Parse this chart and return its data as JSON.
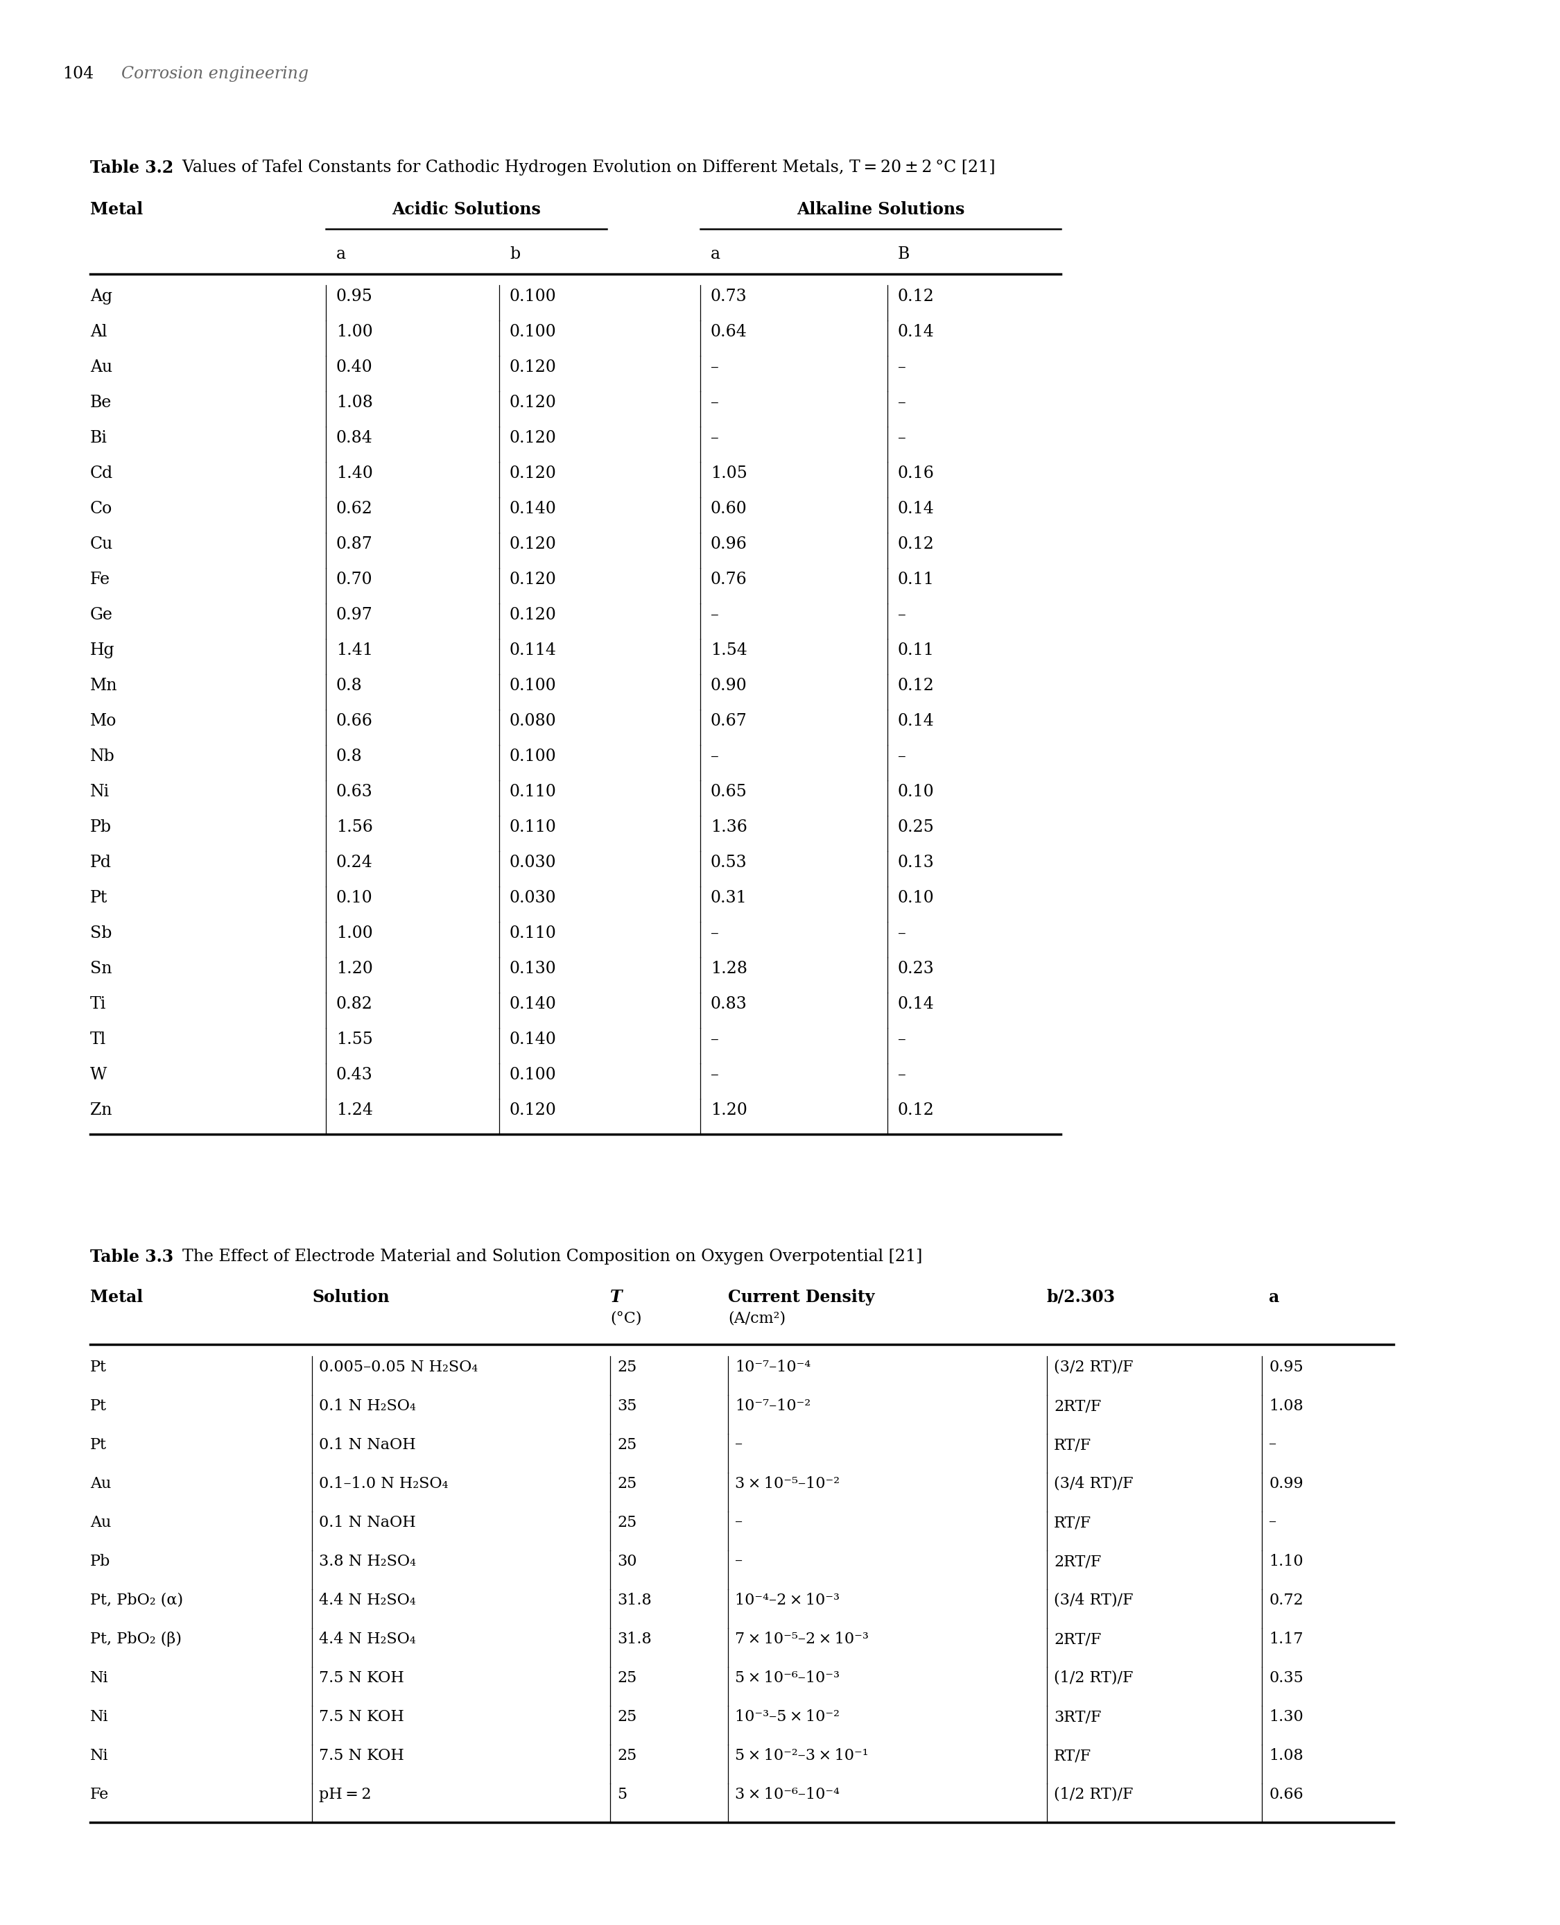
{
  "page_number": "104",
  "page_header": "Corrosion engineering",
  "table1": {
    "title_bold": "Table 3.2",
    "title_normal": "  Values of Tafel Constants for Cathodic Hydrogen Evolution on Different Metals, T = 20 ± 2 °C [21]",
    "rows": [
      [
        "Ag",
        "0.95",
        "0.100",
        "0.73",
        "0.12"
      ],
      [
        "Al",
        "1.00",
        "0.100",
        "0.64",
        "0.14"
      ],
      [
        "Au",
        "0.40",
        "0.120",
        "–",
        "–"
      ],
      [
        "Be",
        "1.08",
        "0.120",
        "–",
        "–"
      ],
      [
        "Bi",
        "0.84",
        "0.120",
        "–",
        "–"
      ],
      [
        "Cd",
        "1.40",
        "0.120",
        "1.05",
        "0.16"
      ],
      [
        "Co",
        "0.62",
        "0.140",
        "0.60",
        "0.14"
      ],
      [
        "Cu",
        "0.87",
        "0.120",
        "0.96",
        "0.12"
      ],
      [
        "Fe",
        "0.70",
        "0.120",
        "0.76",
        "0.11"
      ],
      [
        "Ge",
        "0.97",
        "0.120",
        "–",
        "–"
      ],
      [
        "Hg",
        "1.41",
        "0.114",
        "1.54",
        "0.11"
      ],
      [
        "Mn",
        "0.8",
        "0.100",
        "0.90",
        "0.12"
      ],
      [
        "Mo",
        "0.66",
        "0.080",
        "0.67",
        "0.14"
      ],
      [
        "Nb",
        "0.8",
        "0.100",
        "–",
        "–"
      ],
      [
        "Ni",
        "0.63",
        "0.110",
        "0.65",
        "0.10"
      ],
      [
        "Pb",
        "1.56",
        "0.110",
        "1.36",
        "0.25"
      ],
      [
        "Pd",
        "0.24",
        "0.030",
        "0.53",
        "0.13"
      ],
      [
        "Pt",
        "0.10",
        "0.030",
        "0.31",
        "0.10"
      ],
      [
        "Sb",
        "1.00",
        "0.110",
        "–",
        "–"
      ],
      [
        "Sn",
        "1.20",
        "0.130",
        "1.28",
        "0.23"
      ],
      [
        "Ti",
        "0.82",
        "0.140",
        "0.83",
        "0.14"
      ],
      [
        "Tl",
        "1.55",
        "0.140",
        "–",
        "–"
      ],
      [
        "W",
        "0.43",
        "0.100",
        "–",
        "–"
      ],
      [
        "Zn",
        "1.24",
        "0.120",
        "1.20",
        "0.12"
      ]
    ]
  },
  "table2": {
    "title_bold": "Table 3.3",
    "title_normal": "  The Effect of Electrode Material and Solution Composition on Oxygen Overpotential [21]",
    "rows": [
      [
        "Pt",
        "0.005–0.05 N H₂SO₄",
        "25",
        "10⁻⁷–10⁻⁴",
        "(3/2 RT)/F",
        "0.95"
      ],
      [
        "Pt",
        "0.1 N H₂SO₄",
        "35",
        "10⁻⁷–10⁻²",
        "2RT/F",
        "1.08"
      ],
      [
        "Pt",
        "0.1 N NaOH",
        "25",
        "–",
        "RT/F",
        "–"
      ],
      [
        "Au",
        "0.1–1.0 N H₂SO₄",
        "25",
        "3 × 10⁻⁵–10⁻²",
        "(3/4 RT)/F",
        "0.99"
      ],
      [
        "Au",
        "0.1 N NaOH",
        "25",
        "–",
        "RT/F",
        "–"
      ],
      [
        "Pb",
        "3.8 N H₂SO₄",
        "30",
        "–",
        "2RT/F",
        "1.10"
      ],
      [
        "Pt, PbO₂ (α)",
        "4.4 N H₂SO₄",
        "31.8",
        "10⁻⁴–2 × 10⁻³",
        "(3/4 RT)/F",
        "0.72"
      ],
      [
        "Pt, PbO₂ (β)",
        "4.4 N H₂SO₄",
        "31.8",
        "7 × 10⁻⁵–2 × 10⁻³",
        "2RT/F",
        "1.17"
      ],
      [
        "Ni",
        "7.5 N KOH",
        "25",
        "5 × 10⁻⁶–10⁻³",
        "(1/2 RT)/F",
        "0.35"
      ],
      [
        "Ni",
        "7.5 N KOH",
        "25",
        "10⁻³–5 × 10⁻²",
        "3RT/F",
        "1.30"
      ],
      [
        "Ni",
        "7.5 N KOH",
        "25",
        "5 × 10⁻²–3 × 10⁻¹",
        "RT/F",
        "1.08"
      ],
      [
        "Fe",
        "pH = 2",
        "5",
        "3 × 10⁻⁶–10⁻⁴",
        "(1/2 RT)/F",
        "0.66"
      ]
    ]
  }
}
